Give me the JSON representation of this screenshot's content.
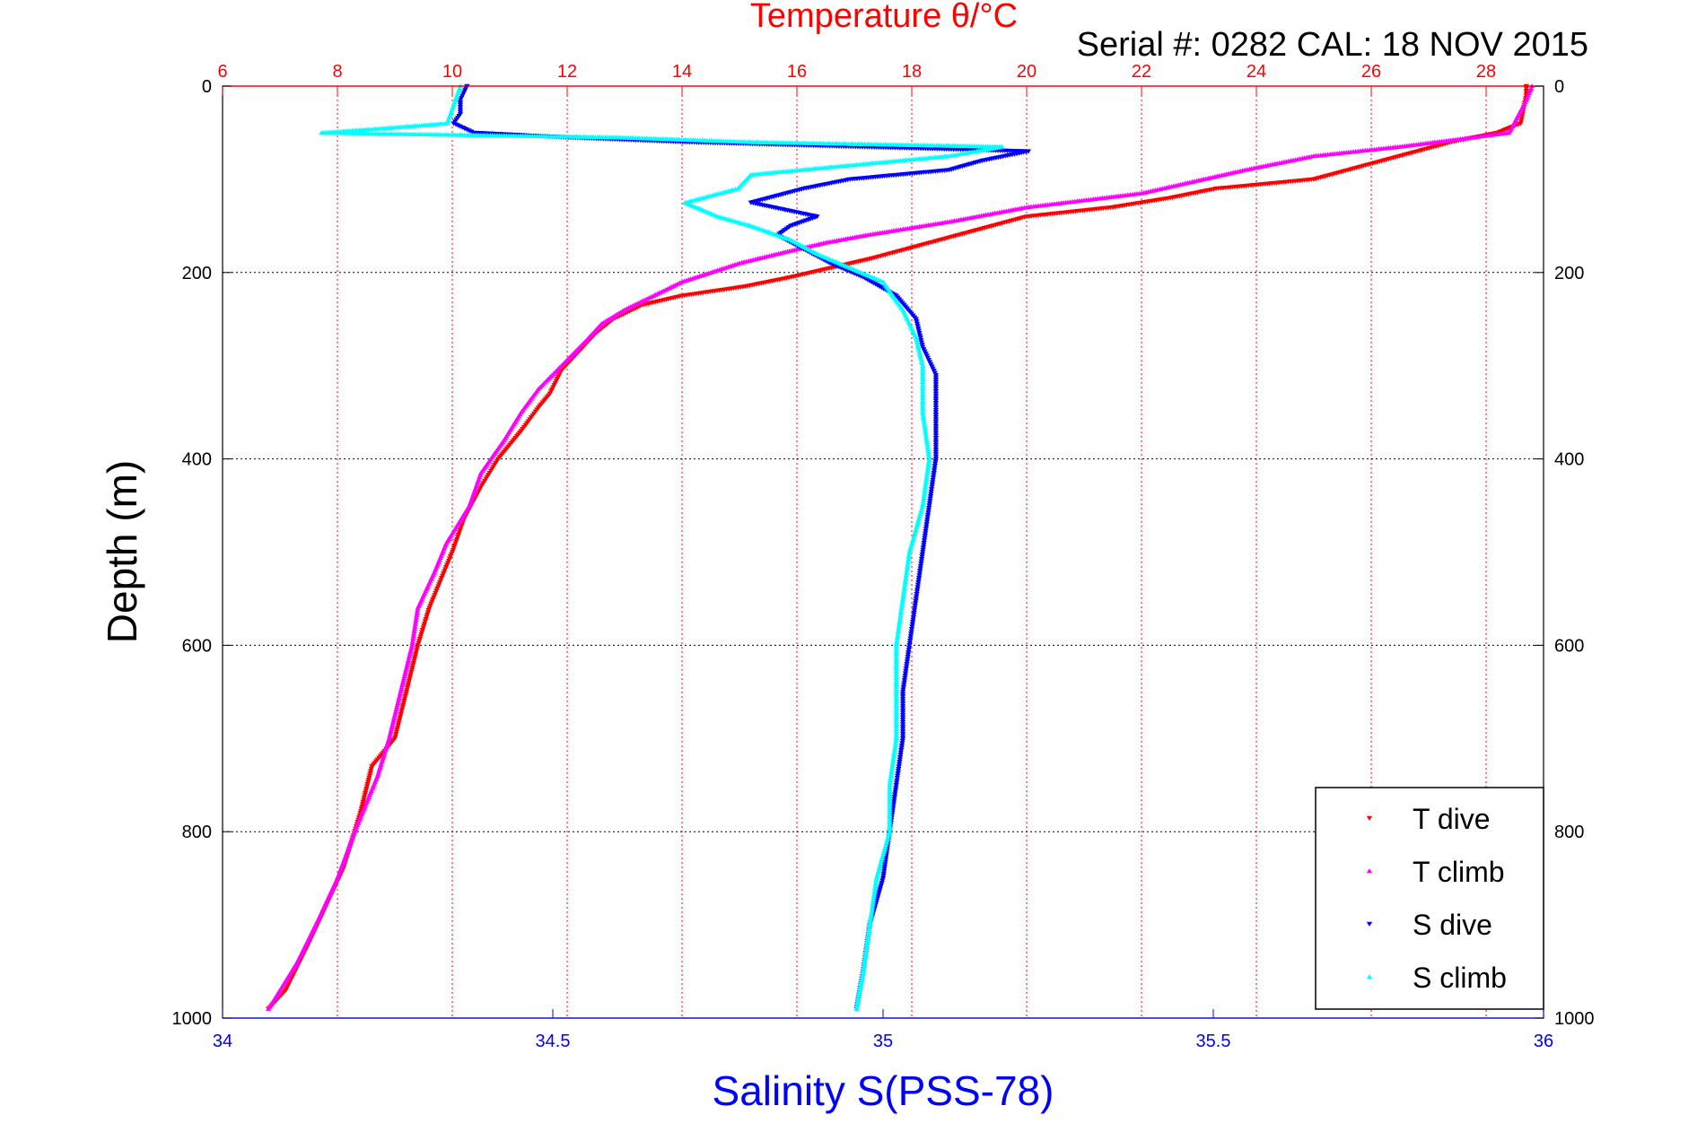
{
  "chart_data": {
    "type": "scatter",
    "title": "Temperature θ/°C",
    "subtitle": "Serial #: 0282  CAL: 18 NOV 2015",
    "xlabel": "Salinity S(PSS-78)",
    "ylabel": "Depth (m)",
    "x_top": {
      "label": "Temperature θ/°C",
      "range": [
        6,
        29
      ],
      "ticks": [
        6,
        8,
        10,
        12,
        14,
        16,
        18,
        20,
        22,
        24,
        26,
        28
      ],
      "color": "#ff0000"
    },
    "x_bottom": {
      "label": "Salinity S(PSS-78)",
      "range": [
        34,
        36
      ],
      "ticks": [
        "34",
        "34.5",
        "35",
        "35.5",
        "36"
      ],
      "color": "#0000ff"
    },
    "y": {
      "label": "Depth (m)",
      "range": [
        0,
        1000
      ],
      "inverted": true,
      "ticks": [
        0,
        200,
        400,
        600,
        800,
        1000
      ]
    },
    "grid": {
      "vertical": "top-axis",
      "horizontal": true,
      "vertical_color": "#ff0000",
      "horizontal_color": "#000000"
    },
    "legend": {
      "placement": "bottom-right"
    },
    "series": [
      {
        "name": "T dive",
        "axis": "top",
        "color": "#ff0000",
        "marker": "triangle-down",
        "points": [
          [
            28.7,
            0
          ],
          [
            28.7,
            10
          ],
          [
            28.6,
            40
          ],
          [
            28.2,
            50
          ],
          [
            27.4,
            60
          ],
          [
            25.0,
            100
          ],
          [
            23.3,
            110
          ],
          [
            22.5,
            120
          ],
          [
            21.5,
            130
          ],
          [
            20.0,
            140
          ],
          [
            18.8,
            160
          ],
          [
            17.9,
            175
          ],
          [
            17.3,
            185
          ],
          [
            16.6,
            195
          ],
          [
            15.9,
            205
          ],
          [
            15.1,
            215
          ],
          [
            14.0,
            225
          ],
          [
            13.3,
            235
          ],
          [
            12.8,
            250
          ],
          [
            12.5,
            265
          ],
          [
            12.2,
            285
          ],
          [
            11.9,
            305
          ],
          [
            11.7,
            330
          ],
          [
            11.5,
            345
          ],
          [
            11.2,
            370
          ],
          [
            10.8,
            400
          ],
          [
            10.5,
            430
          ],
          [
            10.2,
            465
          ],
          [
            10.0,
            500
          ],
          [
            9.8,
            530
          ],
          [
            9.6,
            560
          ],
          [
            9.4,
            600
          ],
          [
            9.2,
            650
          ],
          [
            9.0,
            700
          ],
          [
            8.6,
            730
          ],
          [
            8.4,
            780
          ],
          [
            8.1,
            840
          ],
          [
            7.8,
            880
          ],
          [
            7.5,
            920
          ],
          [
            7.1,
            970
          ],
          [
            6.8,
            990
          ]
        ]
      },
      {
        "name": "T climb",
        "axis": "top",
        "color": "#ff00ff",
        "marker": "triangle-up",
        "points": [
          [
            28.8,
            0
          ],
          [
            28.7,
            15
          ],
          [
            28.4,
            50
          ],
          [
            26.5,
            65
          ],
          [
            25.0,
            75
          ],
          [
            23.8,
            90
          ],
          [
            22.0,
            115
          ],
          [
            20.0,
            130
          ],
          [
            18.7,
            145
          ],
          [
            17.2,
            160
          ],
          [
            16.5,
            168
          ],
          [
            15.8,
            178
          ],
          [
            15.0,
            190
          ],
          [
            14.5,
            200
          ],
          [
            14.0,
            210
          ],
          [
            13.5,
            225
          ],
          [
            13.0,
            240
          ],
          [
            12.6,
            255
          ],
          [
            12.3,
            275
          ],
          [
            11.9,
            300
          ],
          [
            11.5,
            325
          ],
          [
            11.2,
            350
          ],
          [
            10.9,
            380
          ],
          [
            10.5,
            415
          ],
          [
            10.3,
            450
          ],
          [
            9.9,
            490
          ],
          [
            9.7,
            520
          ],
          [
            9.4,
            560
          ],
          [
            9.3,
            600
          ],
          [
            9.1,
            650
          ],
          [
            8.9,
            700
          ],
          [
            8.7,
            740
          ],
          [
            8.3,
            800
          ],
          [
            8.0,
            850
          ],
          [
            7.7,
            890
          ],
          [
            7.3,
            940
          ],
          [
            6.8,
            990
          ]
        ]
      },
      {
        "name": "S dive",
        "axis": "bottom",
        "color": "#0000ff",
        "marker": "triangle-down",
        "points": [
          [
            34.37,
            0
          ],
          [
            34.36,
            15
          ],
          [
            34.36,
            30
          ],
          [
            34.35,
            40
          ],
          [
            34.38,
            50
          ],
          [
            34.52,
            55
          ],
          [
            34.7,
            60
          ],
          [
            35.22,
            70
          ],
          [
            35.15,
            80
          ],
          [
            35.1,
            90
          ],
          [
            34.95,
            100
          ],
          [
            34.88,
            110
          ],
          [
            34.8,
            125
          ],
          [
            34.9,
            140
          ],
          [
            34.86,
            150
          ],
          [
            34.84,
            160
          ],
          [
            34.88,
            175
          ],
          [
            34.92,
            190
          ],
          [
            34.97,
            205
          ],
          [
            35.02,
            225
          ],
          [
            35.05,
            250
          ],
          [
            35.06,
            280
          ],
          [
            35.08,
            310
          ],
          [
            35.08,
            350
          ],
          [
            35.08,
            400
          ],
          [
            35.07,
            450
          ],
          [
            35.06,
            500
          ],
          [
            35.05,
            550
          ],
          [
            35.04,
            600
          ],
          [
            35.03,
            650
          ],
          [
            35.03,
            700
          ],
          [
            35.02,
            750
          ],
          [
            35.01,
            800
          ],
          [
            35.0,
            850
          ],
          [
            34.98,
            900
          ],
          [
            34.97,
            950
          ],
          [
            34.96,
            990
          ]
        ]
      },
      {
        "name": "S climb",
        "axis": "bottom",
        "color": "#00ffff",
        "marker": "triangle-up",
        "points": [
          [
            34.36,
            0
          ],
          [
            34.35,
            20
          ],
          [
            34.34,
            40
          ],
          [
            34.25,
            45
          ],
          [
            34.15,
            50
          ],
          [
            34.6,
            55
          ],
          [
            34.8,
            60
          ],
          [
            35.18,
            65
          ],
          [
            35.1,
            75
          ],
          [
            34.95,
            85
          ],
          [
            34.8,
            95
          ],
          [
            34.78,
            110
          ],
          [
            34.7,
            125
          ],
          [
            34.75,
            140
          ],
          [
            34.8,
            150
          ],
          [
            34.86,
            165
          ],
          [
            34.9,
            180
          ],
          [
            34.95,
            195
          ],
          [
            35.0,
            210
          ],
          [
            35.03,
            240
          ],
          [
            35.05,
            270
          ],
          [
            35.06,
            300
          ],
          [
            35.06,
            350
          ],
          [
            35.07,
            400
          ],
          [
            35.06,
            450
          ],
          [
            35.04,
            500
          ],
          [
            35.03,
            550
          ],
          [
            35.02,
            600
          ],
          [
            35.02,
            650
          ],
          [
            35.02,
            700
          ],
          [
            35.01,
            750
          ],
          [
            35.01,
            800
          ],
          [
            34.99,
            850
          ],
          [
            34.98,
            900
          ],
          [
            34.97,
            950
          ],
          [
            34.96,
            990
          ]
        ]
      }
    ]
  }
}
